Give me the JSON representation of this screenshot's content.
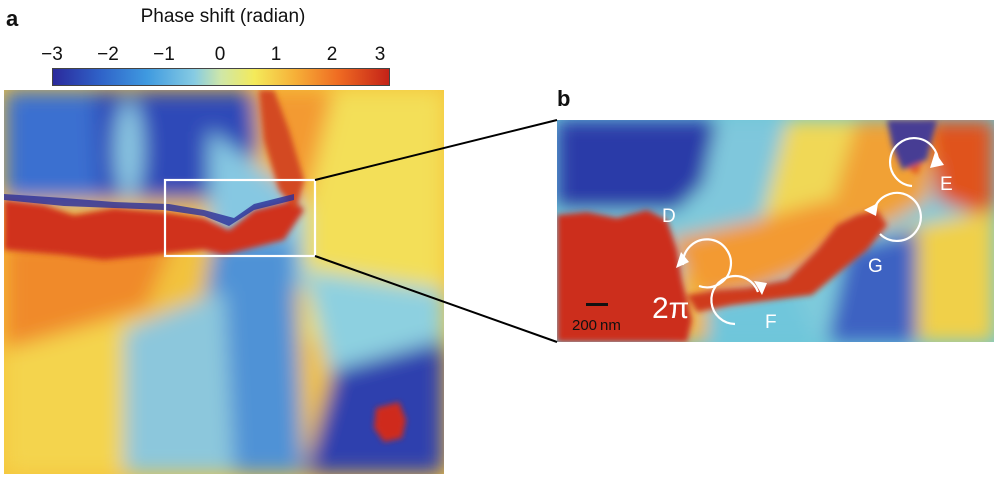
{
  "panel_a": {
    "letter": "a"
  },
  "panel_b": {
    "letter": "b"
  },
  "colorbar": {
    "title": "Phase shift (radian)",
    "ticks": [
      "−3",
      "−2",
      "−1",
      "0",
      "1",
      "2",
      "3"
    ],
    "range": [
      -3,
      3
    ]
  },
  "vortex_labels": {
    "d": "D",
    "e": "E",
    "f": "F",
    "g": "G",
    "two_pi": "2π"
  },
  "scalebar": {
    "label": "200 nm"
  },
  "colors": {
    "dark_blue": "#2b2a9c",
    "blue": "#2f62c8",
    "cyan": "#86cbe3",
    "yellow": "#f4ea5a",
    "orange": "#f6b038",
    "red": "#c42218"
  }
}
